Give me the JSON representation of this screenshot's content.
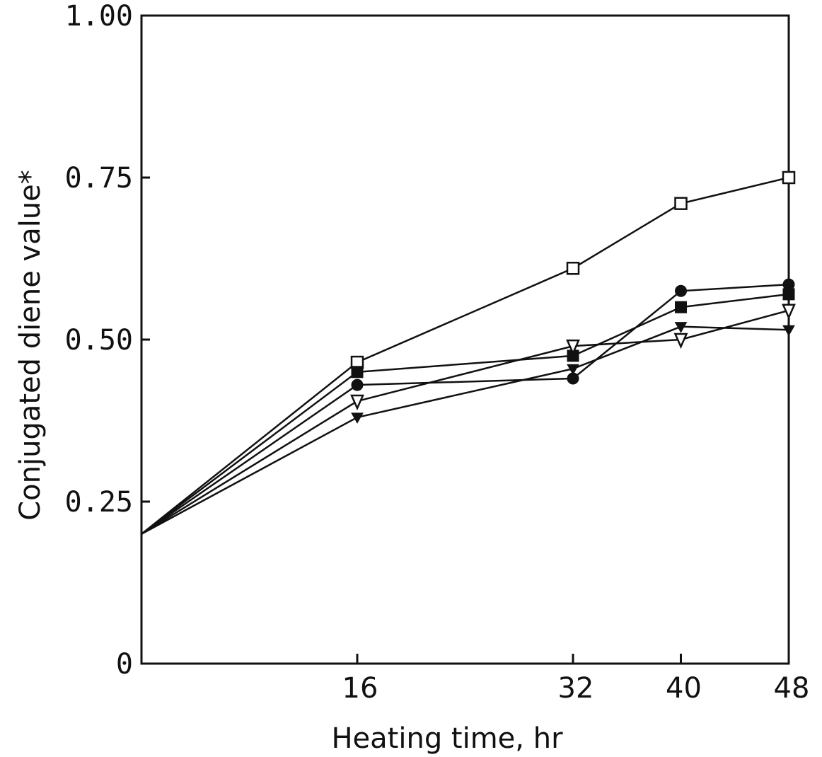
{
  "chart_data": {
    "type": "line",
    "xlabel": "Heating time, hr",
    "ylabel": "Conjugated diene value*",
    "xlim": [
      0,
      48
    ],
    "ylim": [
      0,
      1.0
    ],
    "x_ticks": [
      16,
      32,
      40,
      48
    ],
    "x_tick_labels": [
      "16",
      "32",
      "40",
      "48"
    ],
    "y_ticks": [
      0,
      0.25,
      0.5,
      0.75,
      1.0
    ],
    "y_tick_labels": [
      "0",
      "0.25",
      "0.50",
      "0.75",
      "1.00"
    ],
    "grid": false,
    "series": [
      {
        "marker": "open-square",
        "x": [
          0,
          16,
          32,
          40,
          48
        ],
        "y": [
          0.2,
          0.465,
          0.61,
          0.71,
          0.75
        ]
      },
      {
        "marker": "filled-circle",
        "x": [
          0,
          16,
          32,
          40,
          48
        ],
        "y": [
          0.2,
          0.43,
          0.44,
          0.575,
          0.585
        ]
      },
      {
        "marker": "filled-square",
        "x": [
          0,
          16,
          32,
          40,
          48
        ],
        "y": [
          0.2,
          0.45,
          0.475,
          0.55,
          0.57
        ]
      },
      {
        "marker": "open-triangle-down",
        "x": [
          0,
          16,
          32,
          40,
          48
        ],
        "y": [
          0.2,
          0.405,
          0.49,
          0.5,
          0.545
        ]
      },
      {
        "marker": "filled-triangle-down",
        "x": [
          0,
          16,
          32,
          40,
          48
        ],
        "y": [
          0.2,
          0.38,
          0.455,
          0.52,
          0.515
        ]
      }
    ]
  }
}
